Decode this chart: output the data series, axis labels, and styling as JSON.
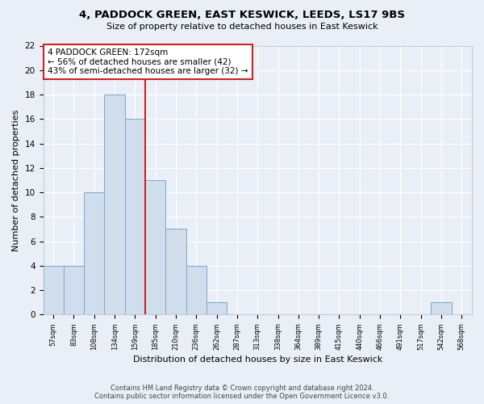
{
  "title1": "4, PADDOCK GREEN, EAST KESWICK, LEEDS, LS17 9BS",
  "title2": "Size of property relative to detached houses in East Keswick",
  "xlabel": "Distribution of detached houses by size in East Keswick",
  "ylabel": "Number of detached properties",
  "bar_labels": [
    "57sqm",
    "83sqm",
    "108sqm",
    "134sqm",
    "159sqm",
    "185sqm",
    "210sqm",
    "236sqm",
    "262sqm",
    "287sqm",
    "313sqm",
    "338sqm",
    "364sqm",
    "389sqm",
    "415sqm",
    "440sqm",
    "466sqm",
    "491sqm",
    "517sqm",
    "542sqm",
    "568sqm"
  ],
  "bar_values": [
    4,
    4,
    10,
    18,
    16,
    11,
    7,
    4,
    1,
    0,
    0,
    0,
    0,
    0,
    0,
    0,
    0,
    0,
    0,
    1,
    0
  ],
  "bar_color": "#cfdded",
  "bar_edge_color": "#7aaac8",
  "property_label": "4 PADDOCK GREEN: 172sqm",
  "annotation_line1": "← 56% of detached houses are smaller (42)",
  "annotation_line2": "43% of semi-detached houses are larger (32) →",
  "box_color": "#cc2222",
  "vline_color": "#cc2222",
  "vline_x": 4.5,
  "ylim": [
    0,
    22
  ],
  "yticks": [
    0,
    2,
    4,
    6,
    8,
    10,
    12,
    14,
    16,
    18,
    20,
    22
  ],
  "footer1": "Contains HM Land Registry data © Crown copyright and database right 2024.",
  "footer2": "Contains public sector information licensed under the Open Government Licence v3.0.",
  "bg_color": "#eaeff7",
  "plot_bg_color": "#eaeff7"
}
